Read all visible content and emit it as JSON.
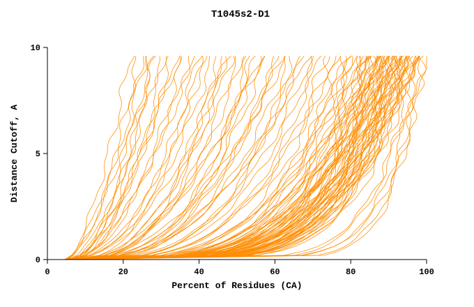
{
  "chart_data": {
    "type": "line",
    "title": "T1045s2-D1",
    "xlabel": "Percent of Residues (CA)",
    "ylabel": "Distance Cutoff, A",
    "xlim": [
      0,
      100
    ],
    "ylim": [
      0,
      10
    ],
    "x_ticks": [
      0,
      20,
      40,
      60,
      80,
      100
    ],
    "y_ticks": [
      0,
      5,
      10
    ],
    "grid": false,
    "legend": "none",
    "line_color": "#ff8c00",
    "description": "GDT-style plot: each orange curve is one predicted model; x = percent of CA residues under the distance cutoff y. Curves parameterized as x(y) = x0 + (xt - x0) * (y/ymax)^(1/k).",
    "ymax": 9.7,
    "curves": [
      [
        4.5,
        22,
        1.6
      ],
      [
        5,
        24,
        1.8
      ],
      [
        4.8,
        26,
        1.5
      ],
      [
        5.5,
        28,
        2.0
      ],
      [
        5,
        30,
        1.7
      ],
      [
        6,
        31,
        2.2
      ],
      [
        5.2,
        33,
        1.9
      ],
      [
        6.5,
        34,
        1.6
      ],
      [
        5.8,
        36,
        2.1
      ],
      [
        6,
        38,
        1.8
      ],
      [
        5.4,
        40,
        2.3
      ],
      [
        6.2,
        42,
        2.0
      ],
      [
        4.6,
        25,
        2.4
      ],
      [
        5.1,
        29,
        1.4
      ],
      [
        5.9,
        35,
        1.5
      ],
      [
        6.4,
        39,
        1.7
      ],
      [
        5.3,
        27,
        2.6
      ],
      [
        6.1,
        41,
        2.5
      ],
      [
        5,
        44,
        2.2
      ],
      [
        5.5,
        46,
        2.6
      ],
      [
        6,
        48,
        2.0
      ],
      [
        5.2,
        50,
        2.8
      ],
      [
        6.3,
        52,
        2.4
      ],
      [
        5.7,
        54,
        3.0
      ],
      [
        6.5,
        56,
        2.2
      ],
      [
        5.4,
        58,
        2.7
      ],
      [
        6.1,
        60,
        3.2
      ],
      [
        5.8,
        62,
        2.5
      ],
      [
        6.6,
        64,
        2.9
      ],
      [
        5.3,
        66,
        3.4
      ],
      [
        6.2,
        68,
        2.6
      ],
      [
        5.6,
        70,
        3.0
      ],
      [
        6.4,
        72,
        3.5
      ],
      [
        5.1,
        45,
        3.1
      ],
      [
        5.9,
        49,
        2.3
      ],
      [
        6.7,
        53,
        3.3
      ],
      [
        5.2,
        57,
        2.1
      ],
      [
        6.0,
        61,
        2.8
      ],
      [
        5.5,
        65,
        3.6
      ],
      [
        6.3,
        69,
        2.4
      ],
      [
        5.7,
        71,
        3.2
      ],
      [
        6.1,
        47,
        2.9
      ],
      [
        5.4,
        55,
        3.5
      ],
      [
        6.5,
        63,
        2.2
      ],
      [
        5,
        74,
        3.5
      ],
      [
        5.5,
        75,
        4.0
      ],
      [
        6,
        76,
        3.2
      ],
      [
        5.2,
        77,
        4.5
      ],
      [
        6.2,
        78,
        3.8
      ],
      [
        5.7,
        79,
        4.2
      ],
      [
        5.3,
        80,
        3.5
      ],
      [
        6.1,
        80,
        5.0
      ],
      [
        5.8,
        81,
        4.0
      ],
      [
        5.4,
        82,
        4.6
      ],
      [
        6.3,
        82,
        3.4
      ],
      [
        5.6,
        83,
        5.2
      ],
      [
        5.1,
        83,
        4.1
      ],
      [
        6.0,
        84,
        4.8
      ],
      [
        5.9,
        84,
        3.7
      ],
      [
        5.2,
        85,
        5.5
      ],
      [
        6.4,
        85,
        4.3
      ],
      [
        5.5,
        85,
        3.9
      ],
      [
        5.7,
        86,
        5.0
      ],
      [
        6.2,
        86,
        4.4
      ],
      [
        5.3,
        86,
        3.6
      ],
      [
        5.8,
        87,
        5.6
      ],
      [
        5.1,
        87,
        4.7
      ],
      [
        6.1,
        87,
        4.0
      ],
      [
        5.6,
        88,
        5.2
      ],
      [
        5.4,
        88,
        4.5
      ],
      [
        6.3,
        88,
        3.8
      ],
      [
        5.9,
        88,
        5.8
      ],
      [
        5.2,
        89,
        4.9
      ],
      [
        5.7,
        89,
        4.2
      ],
      [
        6.0,
        89,
        5.4
      ],
      [
        5.5,
        89,
        3.9
      ],
      [
        5.3,
        90,
        5.0
      ],
      [
        6.2,
        90,
        4.4
      ],
      [
        5.8,
        90,
        5.7
      ],
      [
        5.1,
        90,
        4.1
      ],
      [
        5.6,
        91,
        5.3
      ],
      [
        6.1,
        91,
        4.6
      ],
      [
        5.4,
        91,
        3.9
      ],
      [
        5.9,
        91,
        5.9
      ],
      [
        5.2,
        92,
        4.8
      ],
      [
        5.7,
        92,
        4.3
      ],
      [
        6.0,
        92,
        5.5
      ],
      [
        5.5,
        92,
        6.1
      ],
      [
        5.3,
        93,
        4.7
      ],
      [
        6.2,
        93,
        5.2
      ],
      [
        5.8,
        93,
        4.0
      ],
      [
        5.1,
        93,
        5.8
      ],
      [
        5.6,
        94,
        4.5
      ],
      [
        5.9,
        94,
        5.1
      ],
      [
        5.4,
        94,
        6.0
      ],
      [
        6.1,
        94,
        4.2
      ],
      [
        5.2,
        95,
        5.4
      ],
      [
        5.7,
        95,
        4.8
      ],
      [
        6.0,
        95,
        5.9
      ],
      [
        5.5,
        95,
        4.4
      ],
      [
        5.3,
        96,
        5.0
      ],
      [
        5.8,
        96,
        5.6
      ],
      [
        6.2,
        96,
        4.6
      ],
      [
        5.1,
        96,
        6.2
      ],
      [
        5.6,
        97,
        5.2
      ],
      [
        5.9,
        97,
        4.7
      ],
      [
        5.4,
        97,
        5.8
      ],
      [
        6.0,
        97,
        6.3
      ],
      [
        5.2,
        84,
        6.0
      ],
      [
        5.7,
        86,
        6.2
      ],
      [
        6.1,
        88,
        6.4
      ],
      [
        5.5,
        90,
        6.6
      ],
      [
        5.8,
        92,
        6.5
      ],
      [
        5.3,
        94,
        6.8
      ],
      [
        5,
        97,
        9
      ],
      [
        5.5,
        98,
        10
      ],
      [
        6,
        99,
        11
      ],
      [
        5.2,
        98,
        8
      ],
      [
        5.6,
        99,
        12
      ],
      [
        5.4,
        100,
        9
      ]
    ]
  }
}
